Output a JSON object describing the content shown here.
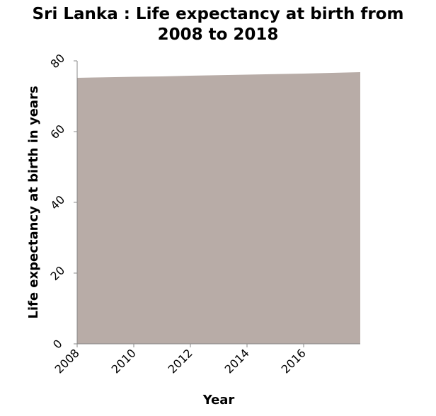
{
  "chart_data": {
    "type": "area",
    "title_lines": [
      "Sri Lanka : Life expectancy at birth from",
      "2008 to 2018"
    ],
    "xlabel": "Year",
    "ylabel": "Life expectancy at birth in years",
    "x": [
      2008,
      2009,
      2010,
      2011,
      2012,
      2013,
      2014,
      2015,
      2016,
      2017,
      2018
    ],
    "values": [
      75.2,
      75.35,
      75.5,
      75.6,
      75.8,
      75.95,
      76.1,
      76.25,
      76.4,
      76.6,
      76.8
    ],
    "xlim": [
      2008,
      2018
    ],
    "ylim": [
      0,
      80
    ],
    "x_ticks": [
      "2008",
      "2010",
      "2012",
      "2014",
      "2016"
    ],
    "y_ticks": [
      "0",
      "20",
      "40",
      "60",
      "80"
    ],
    "fill_color": "#b8aca7",
    "grid": false
  }
}
